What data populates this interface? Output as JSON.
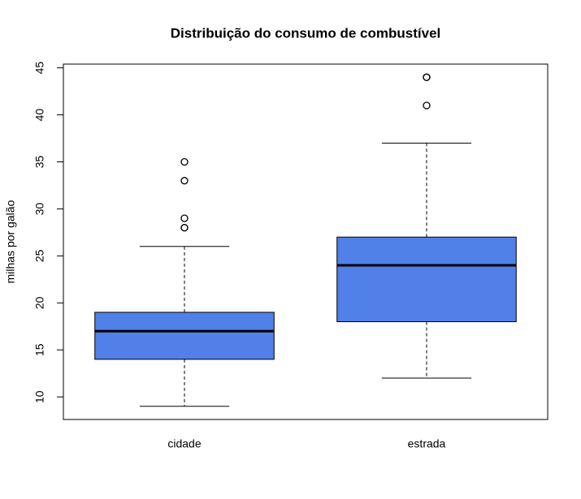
{
  "chart_data": {
    "type": "boxplot",
    "title": "Distribuição do consumo de combustível",
    "ylabel": "milhas por galão",
    "categories": [
      "cidade",
      "estrada"
    ],
    "color": "#5080e8",
    "boxes": [
      {
        "whislo": 9,
        "q1": 14,
        "median": 17,
        "q3": 19,
        "whishi": 26,
        "outliers": [
          28,
          28,
          29,
          33,
          35
        ]
      },
      {
        "whislo": 12,
        "q1": 18,
        "median": 24,
        "q3": 27,
        "whishi": 37,
        "outliers": [
          41,
          44,
          44
        ]
      }
    ],
    "ylim": [
      7.6,
      45.4
    ],
    "yticks": [
      10,
      15,
      20,
      25,
      30,
      35,
      40,
      45
    ]
  }
}
